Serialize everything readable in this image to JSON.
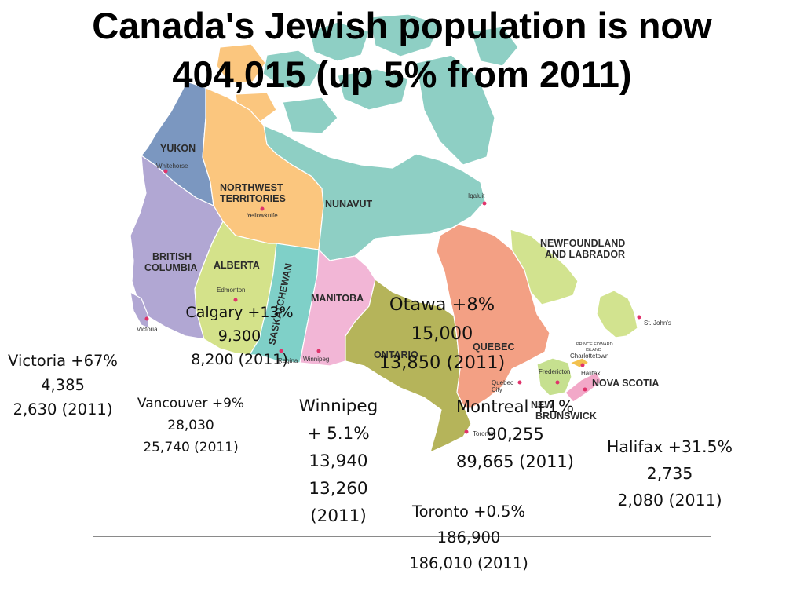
{
  "title": {
    "line1": "Canada's Jewish population is now",
    "line2": "404,015 (up 5% from 2011)"
  },
  "regions": {
    "yukon": "YUKON",
    "nwt_1": "NORTHWEST",
    "nwt_2": "TERRITORIES",
    "nunavut": "NUNAVUT",
    "bc_1": "BRITISH",
    "bc_2": "COLUMBIA",
    "alberta": "ALBERTA",
    "saskatchewan": "SASKATCHEWAN",
    "manitoba": "MANITOBA",
    "ontario": "ONTARIO",
    "quebec": "QUEBEC",
    "nl_1": "NEWFOUNDLAND",
    "nl_2": "AND LABRADOR",
    "ns": "NOVA SCOTIA",
    "nb_1": "NEW",
    "nb_2": "BRUNSWICK",
    "pei_1": "PRINCE EDWARD",
    "pei_2": "ISLAND"
  },
  "map_cities": {
    "whitehorse": "Whitehorse",
    "yellowknife": "Yellowknife",
    "iqaluit": "Iqaluit",
    "edmonton": "Edmonton",
    "regina": "Regina",
    "winnipeg": "Winnipeg",
    "victoria": "Victoria",
    "quebec_city_1": "Quebec",
    "quebec_city_2": "City",
    "toronto": "Toronto",
    "ottawa": "Ottawa",
    "fredericton": "Fredericton",
    "charlottetown": "Charlottetown",
    "halifax": "Halifax",
    "st_johns": "St. John's"
  },
  "colors": {
    "yukon": "#7b97c0",
    "nwt": "#fbc67e",
    "nunavut": "#8ecfc4",
    "bc": "#b1a7d3",
    "alberta": "#d4e28a",
    "saskatchewan": "#7fd0c8",
    "manitoba": "#f2b6d6",
    "ontario": "#b5b45a",
    "quebec": "#f3a084",
    "newfoundland": "#d2e38f",
    "new_brunswick": "#c6e08f",
    "nova_scotia": "#f2a8c8",
    "pei": "#f2c14e"
  },
  "cities": {
    "victoria": {
      "line1": "Victoria  +67%",
      "line2": "4,385",
      "line3": "2,630 (2011)"
    },
    "vancouver": {
      "line1": "Vancouver +9%",
      "line2": "28,030",
      "line3": "25,740 (2011)"
    },
    "calgary": {
      "line1": "Calgary +13%",
      "line2": "9,300",
      "line3": "8,200 (2011)"
    },
    "winnipeg": {
      "line1": "Winnipeg",
      "line2": "+ 5.1%",
      "line3": "13,940",
      "line4": "13,260",
      "line5": "(2011)"
    },
    "ottawa": {
      "line1": "Otawa +8%",
      "line2": "15,000",
      "line3": "13,850 (2011)"
    },
    "montreal": {
      "line1": "Montreal +1%",
      "line2": "90,255",
      "line3": "89,665 (2011)"
    },
    "toronto": {
      "line1": "Toronto +0.5%",
      "line2": "186,900",
      "line3": "186,010 (2011)"
    },
    "halifax": {
      "line1": "Halifax +31.5%",
      "line2": "2,735",
      "line3": "2,080 (2011)"
    }
  }
}
